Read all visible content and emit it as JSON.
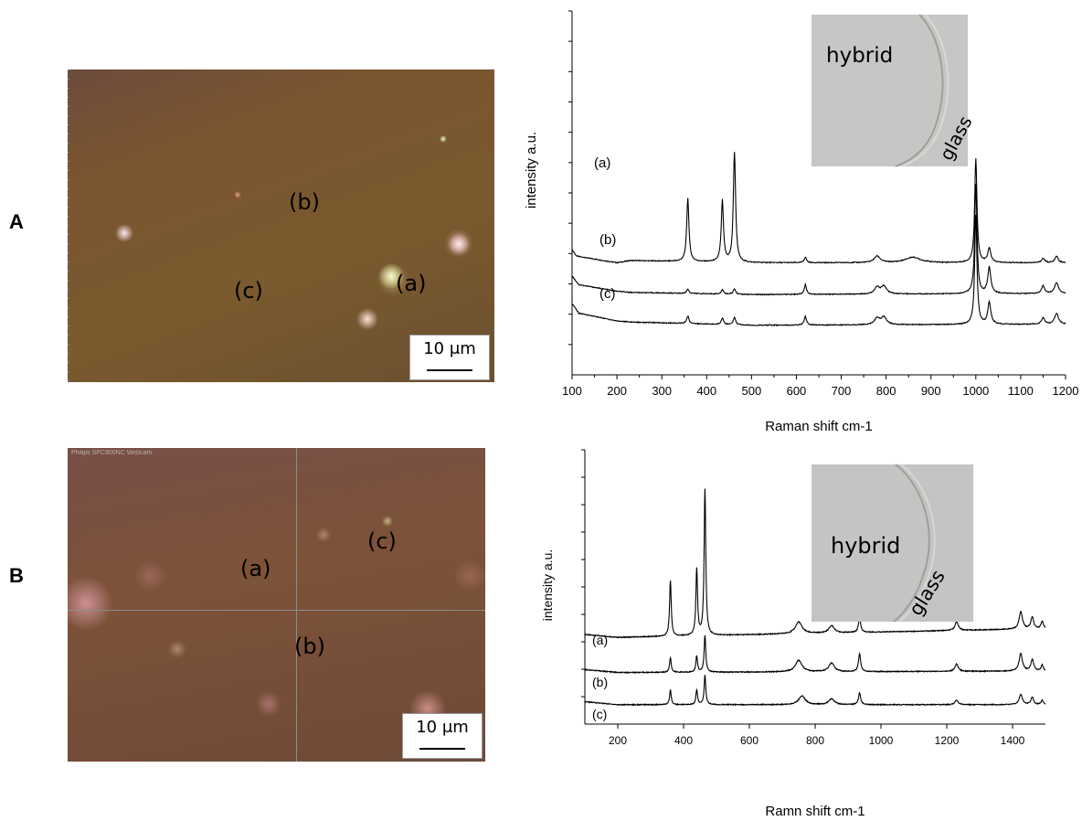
{
  "panels": [
    {
      "letter": "A",
      "micro": {
        "labels": [
          "(a)",
          "(b)",
          "(c)"
        ],
        "scale_text": "10 μm",
        "watermark": ""
      },
      "inset": {
        "hybrid": "hybrid",
        "glass": "glass"
      }
    },
    {
      "letter": "B",
      "micro": {
        "labels": [
          "(a)",
          "(b)",
          "(c)"
        ],
        "scale_text": "10 μm",
        "watermark": "Philips SPC900NC Webcam"
      },
      "inset": {
        "hybrid": "hybrid",
        "glass": "glass"
      }
    }
  ],
  "chart_data": [
    {
      "type": "line",
      "xlabel": "Raman shift cm-1",
      "ylabel": "intensity a.u.",
      "xlim": [
        100,
        1200
      ],
      "xticks": [
        100,
        200,
        300,
        400,
        500,
        600,
        700,
        800,
        900,
        1000,
        1100,
        1200
      ],
      "series": [
        {
          "name": "(a)",
          "offset": 0.56,
          "baseline": [
            [
              100,
              0.14
            ],
            [
              110,
              0.08
            ],
            [
              200,
              0.02
            ],
            [
              230,
              0.04
            ],
            [
              500,
              0.02
            ],
            [
              1200,
              0.02
            ]
          ],
          "peaks": [
            [
              358,
              0.58,
              3
            ],
            [
              435,
              0.56,
              3
            ],
            [
              462,
              1.0,
              3
            ],
            [
              620,
              0.05,
              3
            ],
            [
              780,
              0.06,
              8
            ],
            [
              860,
              0.05,
              20
            ],
            [
              1000,
              0.95,
              3
            ],
            [
              1030,
              0.13,
              4
            ],
            [
              1150,
              0.04,
              4
            ],
            [
              1180,
              0.06,
              4
            ]
          ]
        },
        {
          "name": "(b)",
          "offset": 0.28,
          "baseline": [
            [
              100,
              0.18
            ],
            [
              115,
              0.1
            ],
            [
              200,
              0.04
            ],
            [
              230,
              0.03
            ],
            [
              500,
              0.01
            ],
            [
              1200,
              0.02
            ]
          ],
          "peaks": [
            [
              358,
              0.04,
              3
            ],
            [
              435,
              0.04,
              3
            ],
            [
              462,
              0.05,
              3
            ],
            [
              620,
              0.09,
              3
            ],
            [
              780,
              0.06,
              7
            ],
            [
              795,
              0.07,
              7
            ],
            [
              1000,
              1.0,
              3
            ],
            [
              1030,
              0.24,
              4
            ],
            [
              1150,
              0.07,
              4
            ],
            [
              1180,
              0.1,
              5
            ]
          ]
        },
        {
          "name": "(c)",
          "offset": 0.0,
          "baseline": [
            [
              100,
              0.21
            ],
            [
              115,
              0.12
            ],
            [
              200,
              0.05
            ],
            [
              230,
              0.04
            ],
            [
              500,
              0.01
            ],
            [
              1200,
              0.02
            ]
          ],
          "peaks": [
            [
              358,
              0.07,
              3
            ],
            [
              435,
              0.06,
              3
            ],
            [
              462,
              0.07,
              3
            ],
            [
              620,
              0.08,
              3
            ],
            [
              780,
              0.06,
              7
            ],
            [
              795,
              0.07,
              7
            ],
            [
              1000,
              1.0,
              3
            ],
            [
              1030,
              0.2,
              4
            ],
            [
              1150,
              0.06,
              4
            ],
            [
              1180,
              0.1,
              5
            ]
          ]
        }
      ]
    },
    {
      "type": "line",
      "xlabel": "Ramn shift cm-1",
      "ylabel": "intensity a.u.",
      "xlim": [
        100,
        1500
      ],
      "xticks": [
        200,
        400,
        600,
        800,
        1000,
        1200,
        1400
      ],
      "series": [
        {
          "name": "(a)",
          "offset": 0.46,
          "baseline": [
            [
              100,
              0.04
            ],
            [
              200,
              0.02
            ],
            [
              1500,
              0.08
            ]
          ],
          "peaks": [
            [
              360,
              0.38,
              3
            ],
            [
              440,
              0.45,
              3
            ],
            [
              465,
              1.0,
              3
            ],
            [
              750,
              0.08,
              12
            ],
            [
              850,
              0.05,
              10
            ],
            [
              935,
              0.1,
              4
            ],
            [
              1230,
              0.06,
              6
            ],
            [
              1425,
              0.12,
              6
            ],
            [
              1460,
              0.08,
              5
            ],
            [
              1490,
              0.05,
              4
            ]
          ]
        },
        {
          "name": "(b)",
          "offset": 0.22,
          "baseline": [
            [
              100,
              0.04
            ],
            [
              200,
              0.02
            ],
            [
              1500,
              0.03
            ]
          ],
          "peaks": [
            [
              360,
              0.1,
              3
            ],
            [
              440,
              0.11,
              3
            ],
            [
              465,
              0.25,
              3
            ],
            [
              750,
              0.08,
              12
            ],
            [
              850,
              0.06,
              10
            ],
            [
              935,
              0.12,
              4
            ],
            [
              1230,
              0.05,
              6
            ],
            [
              1425,
              0.12,
              6
            ],
            [
              1460,
              0.08,
              5
            ],
            [
              1490,
              0.04,
              4
            ]
          ]
        },
        {
          "name": "(c)",
          "offset": 0.0,
          "baseline": [
            [
              100,
              0.04
            ],
            [
              200,
              0.02
            ],
            [
              1500,
              0.02
            ]
          ],
          "peaks": [
            [
              360,
              0.1,
              3
            ],
            [
              440,
              0.1,
              3
            ],
            [
              465,
              0.2,
              3
            ],
            [
              760,
              0.06,
              12
            ],
            [
              850,
              0.04,
              10
            ],
            [
              935,
              0.08,
              4
            ],
            [
              1230,
              0.03,
              6
            ],
            [
              1425,
              0.07,
              6
            ],
            [
              1460,
              0.05,
              5
            ],
            [
              1490,
              0.03,
              4
            ]
          ]
        }
      ]
    }
  ]
}
